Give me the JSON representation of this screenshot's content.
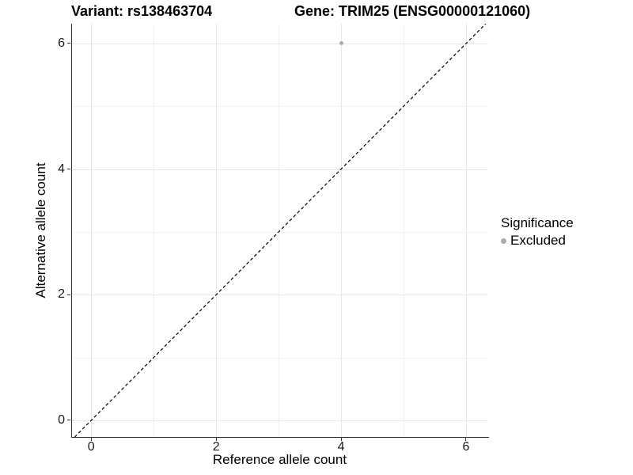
{
  "figure": {
    "title_variant": "Variant: rs138463704",
    "title_gene": "Gene: TRIM25 (ENSG00000121060)"
  },
  "axes": {
    "x": {
      "label": "Reference allele count",
      "tick_labels": [
        "0",
        "2",
        "4",
        "6"
      ]
    },
    "y": {
      "label": "Alternative allele count",
      "tick_labels": [
        "0",
        "2",
        "4",
        "6"
      ]
    }
  },
  "legend": {
    "title": "Significance",
    "items": [
      {
        "label": "Excluded",
        "marker": "dot",
        "color": "#ababab"
      }
    ]
  },
  "colors": {
    "background": "#ffffff",
    "axis_line": "#333333",
    "grid_major": "#e7e7e7",
    "grid_minor": "#f2f2f2",
    "point": "#ababab",
    "identity_line": "#000000",
    "text": "#000000"
  },
  "chart_data": {
    "type": "scatter",
    "title": "Variant: rs138463704 | Gene: TRIM25 (ENSG00000121060)",
    "xlabel": "Reference allele count",
    "ylabel": "Alternative allele count",
    "xlim": [
      -0.32,
      6.355
    ],
    "ylim": [
      -0.265,
      6.315
    ],
    "x_ticks": [
      0,
      2,
      4,
      6
    ],
    "y_ticks": [
      0,
      2,
      4,
      6
    ],
    "minor_grid": [
      1,
      3,
      5
    ],
    "grid": "on",
    "legend_position": "right",
    "series": [
      {
        "name": "Excluded",
        "color": "#ababab",
        "points": [
          {
            "x": 4,
            "y": 6
          }
        ]
      }
    ],
    "reference_line": {
      "type": "identity y=x",
      "style": "dashed",
      "color": "#000000",
      "dash": [
        4,
        3
      ]
    }
  }
}
